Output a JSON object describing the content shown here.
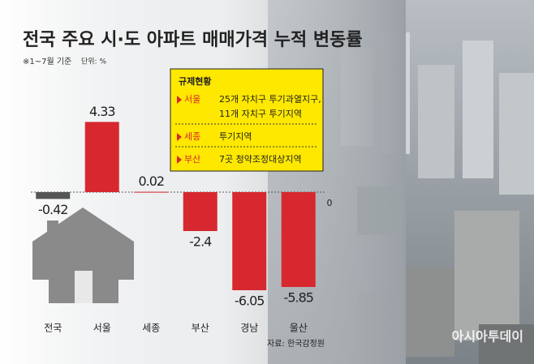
{
  "chart_data": {
    "type": "bar",
    "title": "전국 주요 시·도 아파트 매매가격 누적 변동률",
    "subtitle": "※1~7월 기준",
    "unit": "단위: %",
    "source": "자료: 한국감정원",
    "watermark": "아시아투데이",
    "categories": [
      "전국",
      "서울",
      "세종",
      "부산",
      "경남",
      "울산"
    ],
    "values": [
      -0.42,
      4.33,
      0.02,
      -2.4,
      -6.05,
      -5.85
    ],
    "colors": [
      "#555555",
      "#d7282f",
      "#d7282f",
      "#d7282f",
      "#d7282f",
      "#d7282f"
    ],
    "ylim": [
      -6.5,
      5
    ],
    "yticks": [
      0
    ],
    "annotation": {
      "title": "규제현황",
      "items": [
        {
          "region": "서울",
          "lines": [
            "25개 자치구 투기과열지구,",
            "11개 자치구 투기지역"
          ]
        },
        {
          "region": "세종",
          "lines": [
            "투기지역"
          ]
        },
        {
          "region": "부산",
          "lines": [
            "7곳 청약조정대상지역"
          ]
        }
      ]
    }
  }
}
